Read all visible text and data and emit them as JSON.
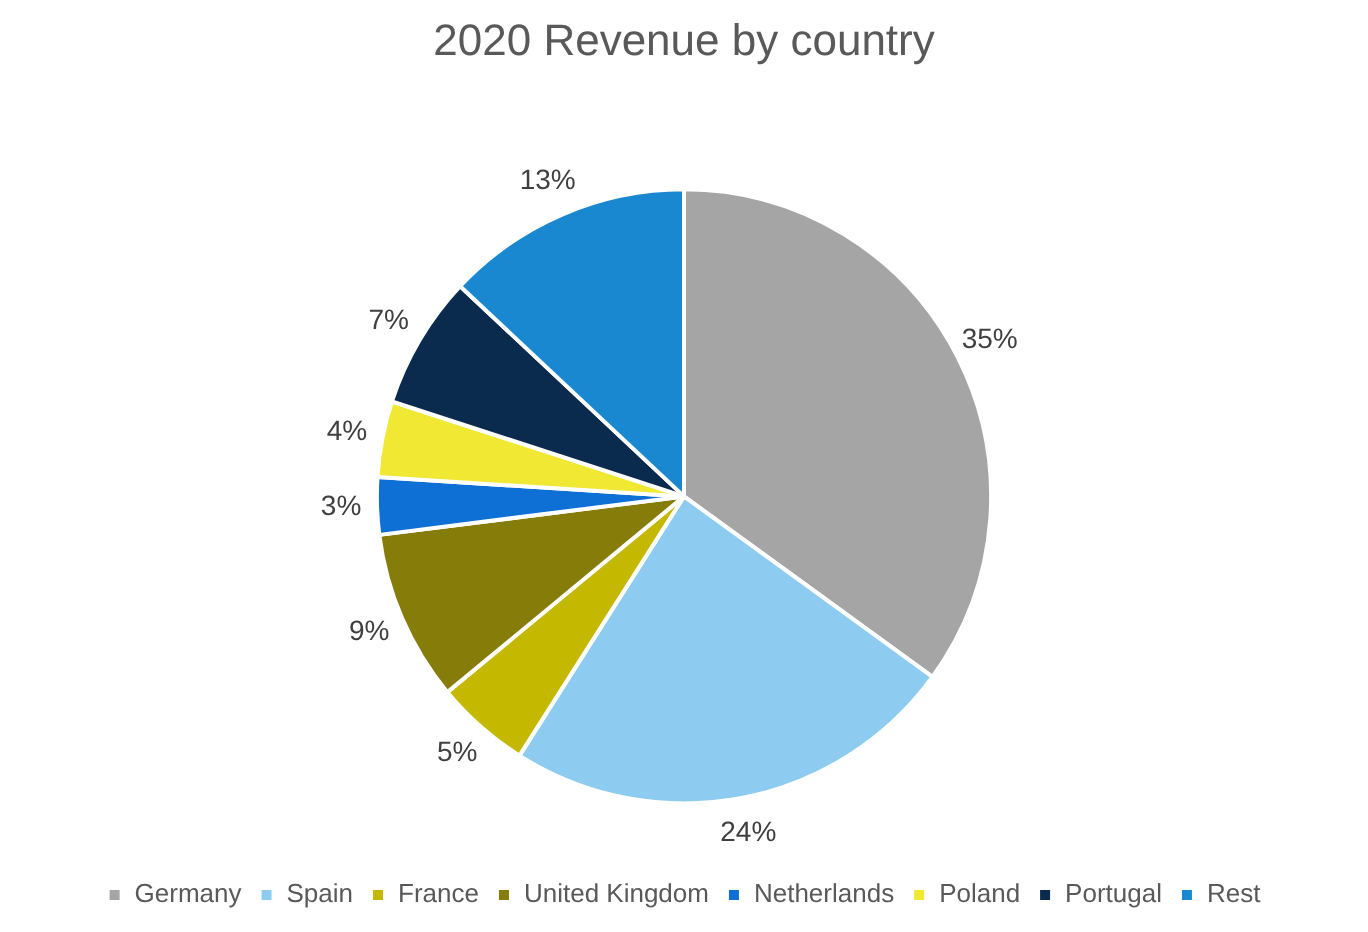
{
  "chart_data": {
    "type": "pie",
    "title": "2020 Revenue by country",
    "categories": [
      "Germany",
      "Spain",
      "France",
      "United Kingdom",
      "Netherlands",
      "Poland",
      "Portugal",
      "Rest"
    ],
    "values": [
      35,
      24,
      5,
      9,
      3,
      4,
      7,
      13
    ],
    "value_labels": [
      "35%",
      "24%",
      "5%",
      "9%",
      "3%",
      "4%",
      "7%",
      "13%"
    ],
    "colors": [
      "#a5a5a5",
      "#8ecbf0",
      "#c5b800",
      "#857c0a",
      "#0e6fd4",
      "#f0e832",
      "#0a2a4e",
      "#1a88d0"
    ],
    "legend": "bottom"
  }
}
